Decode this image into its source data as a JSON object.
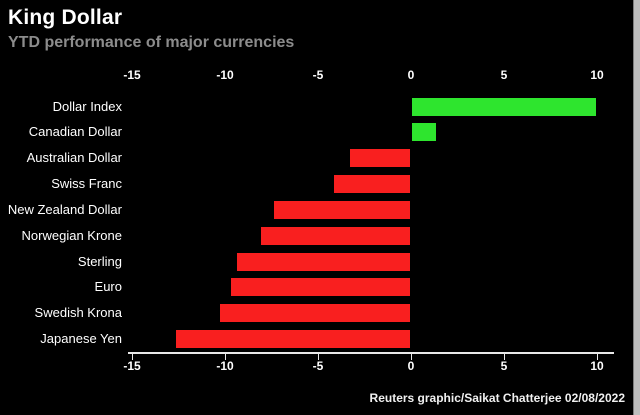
{
  "chart_data": {
    "type": "bar",
    "orientation": "horizontal",
    "title": "King Dollar",
    "subtitle": "YTD performance of major currencies",
    "source": "Reuters graphic/Saikat Chatterjee 02/08/2022",
    "categories": [
      "Dollar Index",
      "Canadian Dollar",
      "Australian Dollar",
      "Swiss Franc",
      "New Zealand Dollar",
      "Norwegian Krone",
      "Sterling",
      "Euro",
      "Swedish Krona",
      "Japanese Yen"
    ],
    "values": [
      9.9,
      1.3,
      -3.2,
      -4.1,
      -7.3,
      -8.0,
      -9.3,
      -9.6,
      -10.2,
      -12.6
    ],
    "xlabel": "",
    "ylabel": "",
    "axis_ticks": [
      -15,
      -10,
      -5,
      0,
      5,
      10
    ],
    "xlim": [
      -15.2,
      10.9
    ],
    "grid": "off",
    "legend": "none",
    "positive_color": "#2ee52e",
    "negative_color": "#f91f1f",
    "background_color": "#000000",
    "text_color": "#ffffff",
    "subtitle_color": "#8c8c8c"
  }
}
